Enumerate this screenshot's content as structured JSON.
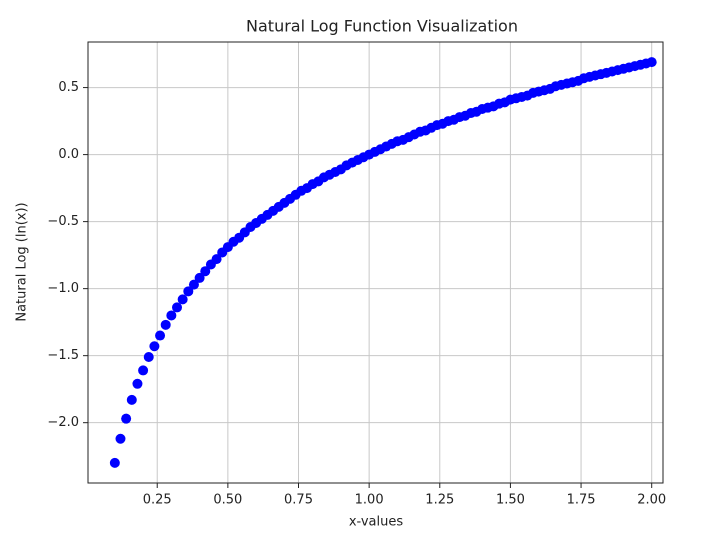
{
  "chart_data": {
    "type": "scatter",
    "title": "Natural Log Function Visualization",
    "x_label": "x-values",
    "y_label": "Natural Log (ln(x))",
    "x": [
      0.1,
      0.12,
      0.14,
      0.16,
      0.18,
      0.2,
      0.22,
      0.24,
      0.26,
      0.28,
      0.3,
      0.32,
      0.34,
      0.36,
      0.38,
      0.4,
      0.42,
      0.44,
      0.46,
      0.48,
      0.5,
      0.52,
      0.54,
      0.56,
      0.58,
      0.6,
      0.62,
      0.64,
      0.66,
      0.68,
      0.7,
      0.72,
      0.74,
      0.76,
      0.78,
      0.8,
      0.82,
      0.84,
      0.86,
      0.88,
      0.9,
      0.92,
      0.94,
      0.96,
      0.98,
      1.0,
      1.02,
      1.04,
      1.06,
      1.08,
      1.1,
      1.12,
      1.14,
      1.16,
      1.18,
      1.2,
      1.22,
      1.24,
      1.26,
      1.28,
      1.3,
      1.32,
      1.34,
      1.36,
      1.38,
      1.4,
      1.42,
      1.44,
      1.46,
      1.48,
      1.5,
      1.52,
      1.54,
      1.56,
      1.58,
      1.6,
      1.62,
      1.64,
      1.66,
      1.68,
      1.7,
      1.72,
      1.74,
      1.76,
      1.78,
      1.8,
      1.82,
      1.84,
      1.86,
      1.88,
      1.9,
      1.92,
      1.94,
      1.96,
      1.98,
      2.0
    ],
    "series": [
      {
        "color": "#0000ff",
        "values": [
          -2.3,
          -2.12,
          -1.97,
          -1.83,
          -1.71,
          -1.61,
          -1.51,
          -1.43,
          -1.35,
          -1.27,
          -1.2,
          -1.14,
          -1.08,
          -1.02,
          -0.97,
          -0.92,
          -0.87,
          -0.82,
          -0.78,
          -0.73,
          -0.69,
          -0.65,
          -0.62,
          -0.58,
          -0.54,
          -0.51,
          -0.48,
          -0.45,
          -0.42,
          -0.39,
          -0.36,
          -0.33,
          -0.3,
          -0.27,
          -0.25,
          -0.22,
          -0.2,
          -0.17,
          -0.15,
          -0.13,
          -0.11,
          -0.08,
          -0.06,
          -0.04,
          -0.02,
          0.0,
          0.02,
          0.04,
          0.06,
          0.08,
          0.1,
          0.11,
          0.13,
          0.15,
          0.17,
          0.18,
          0.2,
          0.22,
          0.23,
          0.25,
          0.26,
          0.28,
          0.29,
          0.31,
          0.32,
          0.34,
          0.35,
          0.36,
          0.38,
          0.39,
          0.41,
          0.42,
          0.43,
          0.44,
          0.46,
          0.47,
          0.48,
          0.49,
          0.51,
          0.52,
          0.53,
          0.54,
          0.55,
          0.57,
          0.58,
          0.59,
          0.6,
          0.61,
          0.62,
          0.63,
          0.64,
          0.65,
          0.66,
          0.67,
          0.68,
          0.69
        ]
      }
    ],
    "xlim": [
      0.005,
      2.04
    ],
    "ylim": [
      -2.45,
      0.84
    ],
    "xticks": [
      {
        "value": 0.25,
        "label": "0.25"
      },
      {
        "value": 0.5,
        "label": "0.50"
      },
      {
        "value": 0.75,
        "label": "0.75"
      },
      {
        "value": 1,
        "label": "1.00"
      },
      {
        "value": 1.25,
        "label": "1.25"
      },
      {
        "value": 1.5,
        "label": "1.50"
      },
      {
        "value": 1.75,
        "label": "1.75"
      },
      {
        "value": 2,
        "label": "2.00"
      }
    ],
    "yticks": [
      {
        "value": -2,
        "label": "−2.0"
      },
      {
        "value": -1.5,
        "label": "−1.5"
      },
      {
        "value": -1,
        "label": "−1.0"
      },
      {
        "value": -0.5,
        "label": "−0.5"
      },
      {
        "value": 0,
        "label": "0.0"
      },
      {
        "value": 0.5,
        "label": "0.5"
      }
    ],
    "grid": true
  }
}
